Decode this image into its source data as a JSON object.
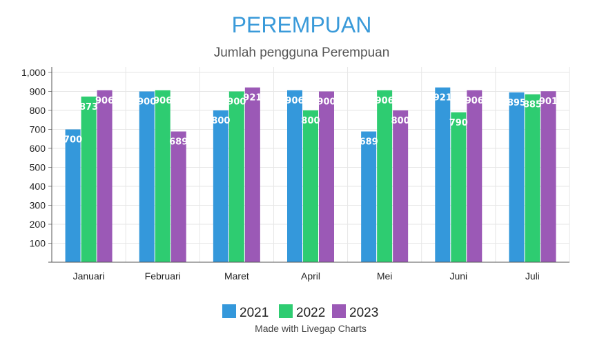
{
  "chart_data": {
    "type": "bar",
    "title": "PEREMPUAN",
    "subtitle": "Jumlah pengguna Perempuan",
    "categories": [
      "Januari",
      "Februari",
      "Maret",
      "April",
      "Mei",
      "Juni",
      "Juli"
    ],
    "series": [
      {
        "name": "2021",
        "color": "#3498db",
        "values": [
          700,
          900,
          800,
          906,
          689,
          921,
          895
        ]
      },
      {
        "name": "2022",
        "color": "#2ecc71",
        "values": [
          873,
          906,
          900,
          800,
          906,
          790,
          885
        ]
      },
      {
        "name": "2023",
        "color": "#9b59b6",
        "values": [
          906,
          689,
          921,
          900,
          800,
          906,
          901
        ]
      }
    ],
    "y_ticks": [
      "100",
      "200",
      "300",
      "400",
      "500",
      "600",
      "700",
      "800",
      "900",
      "1,000"
    ],
    "ylim": [
      0,
      1000
    ],
    "grid": true,
    "legend_position": "bottom",
    "data_labels": true
  },
  "footer": {
    "credit": "Made with Livegap Charts"
  }
}
